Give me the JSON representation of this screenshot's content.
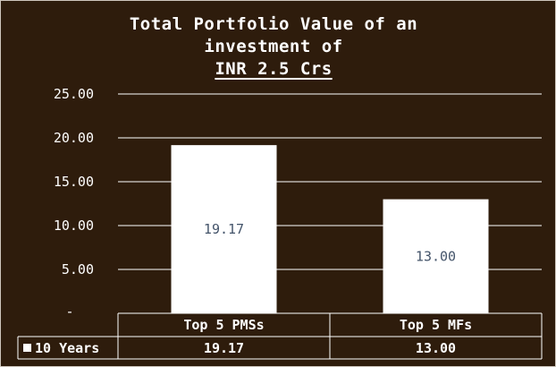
{
  "colors": {
    "background": "#2e1c0c",
    "bar": "#ffffff",
    "data_label": "#44546a",
    "text": "#ffffff",
    "grid": "#ffffff"
  },
  "chart_data": {
    "type": "bar",
    "title": [
      "Total Portfolio Value of an",
      "investment of",
      "INR 2.5 Crs"
    ],
    "categories": [
      "Top 5 PMSs",
      "Top 5 MFs"
    ],
    "series": [
      {
        "name": "10 Years",
        "values": [
          19.17,
          13.0
        ]
      }
    ],
    "value_labels": [
      "19.17",
      "13.00"
    ],
    "ylim": [
      0,
      25
    ],
    "yticks": [
      0,
      5,
      10,
      15,
      20,
      25
    ],
    "ytick_labels": [
      "-",
      "5.00",
      "10.00",
      "15.00",
      "20.00",
      "25.00"
    ],
    "grid": true,
    "legend": "data-table",
    "data_table": {
      "row_label": "10 Years",
      "values": [
        "19.17",
        "13.00"
      ]
    }
  }
}
